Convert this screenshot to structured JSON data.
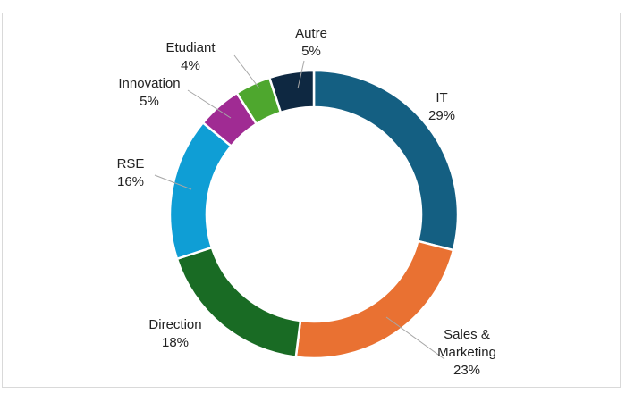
{
  "chart_data": {
    "type": "pie",
    "variant": "donut",
    "categories": [
      "IT",
      "Sales & Marketing",
      "Direction",
      "RSE",
      "Innovation",
      "Etudiant",
      "Autre"
    ],
    "values": [
      29,
      23,
      18,
      16,
      5,
      4,
      5
    ],
    "value_labels": [
      "29%",
      "23%",
      "18%",
      "16%",
      "5%",
      "4%",
      "5%"
    ],
    "label_lines": [
      [
        "IT"
      ],
      [
        "Sales &",
        "Marketing"
      ],
      [
        "Direction"
      ],
      [
        "RSE"
      ],
      [
        "Innovation"
      ],
      [
        "Etudiant"
      ],
      [
        "Autre"
      ]
    ],
    "colors": [
      "#145f82",
      "#e97132",
      "#196b24",
      "#0f9ed5",
      "#a02b93",
      "#4ea72e",
      "#0e2841"
    ],
    "legend": "none",
    "title": ""
  }
}
